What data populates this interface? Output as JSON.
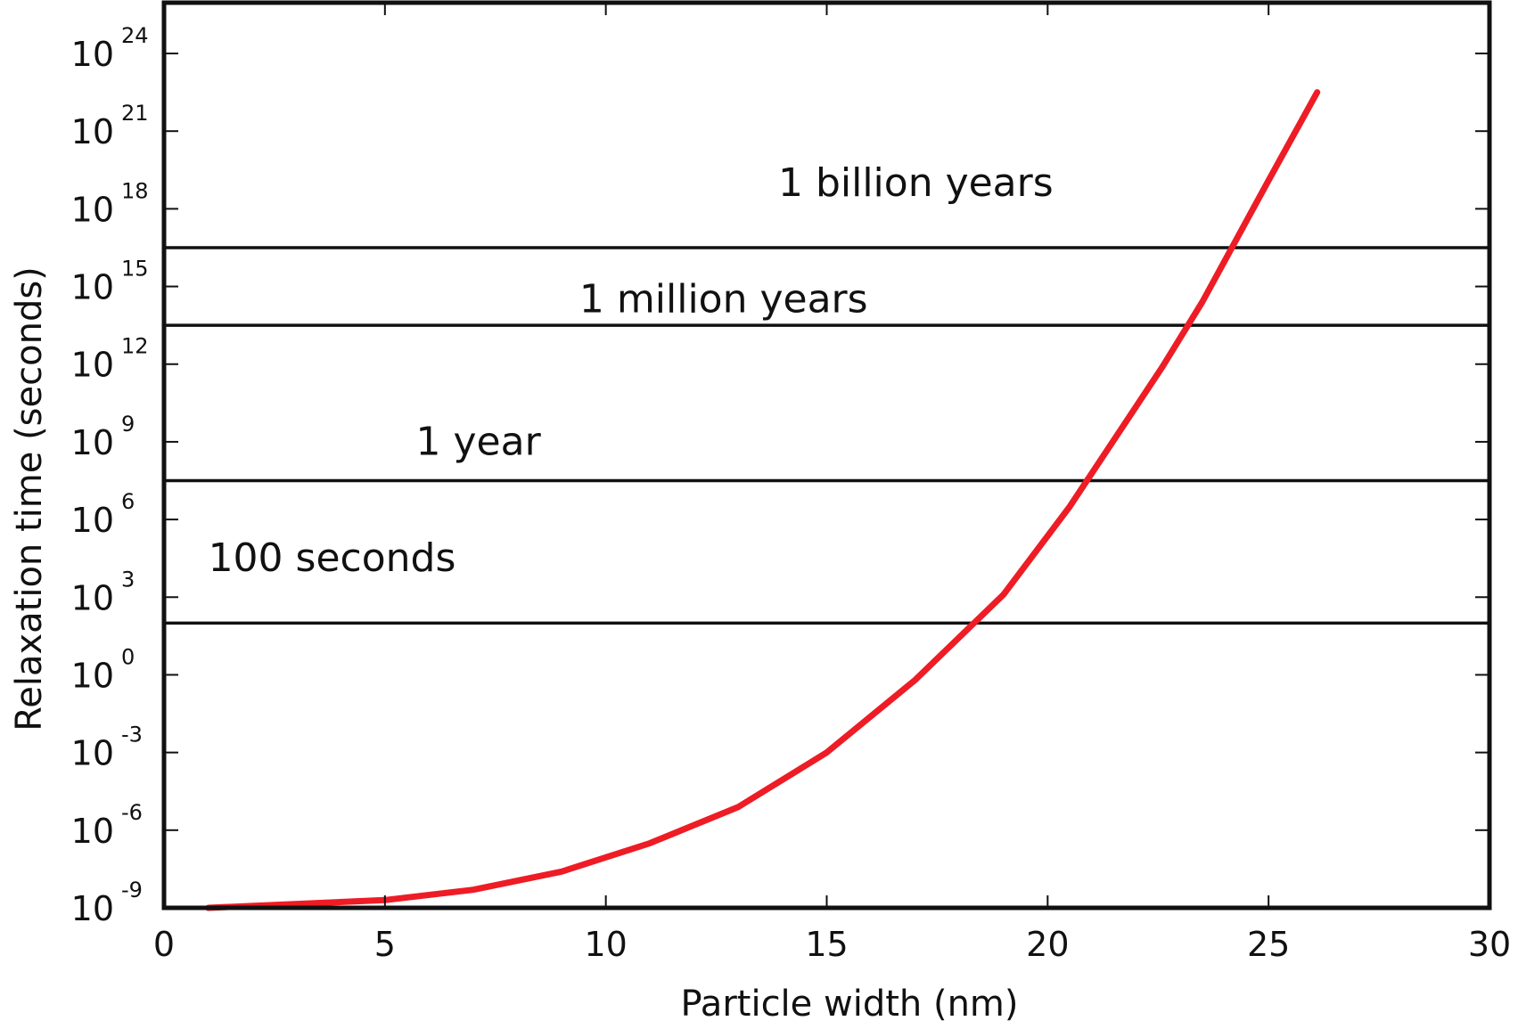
{
  "chart_data": {
    "type": "line",
    "title": "",
    "xlabel": "Particle width (nm)",
    "ylabel": "Relaxation time (seconds)",
    "xlim": [
      0,
      30
    ],
    "ylim_log10": [
      -9,
      26
    ],
    "yscale": "log",
    "grid": false,
    "legend": null,
    "x_ticks": [
      0,
      5,
      10,
      15,
      20,
      25,
      30
    ],
    "y_ticks": [
      {
        "base": "10",
        "exp": "-9"
      },
      {
        "base": "10",
        "exp": "-6"
      },
      {
        "base": "10",
        "exp": "-3"
      },
      {
        "base": "10",
        "exp": "0"
      },
      {
        "base": "10",
        "exp": "3"
      },
      {
        "base": "10",
        "exp": "6"
      },
      {
        "base": "10",
        "exp": "9"
      },
      {
        "base": "10",
        "exp": "12"
      },
      {
        "base": "10",
        "exp": "15"
      },
      {
        "base": "10",
        "exp": "18"
      },
      {
        "base": "10",
        "exp": "21"
      },
      {
        "base": "10",
        "exp": "24"
      }
    ],
    "series": [
      {
        "name": "Relaxation time",
        "color": "#ee1c25",
        "x": [
          1.0,
          5.0,
          7.0,
          9.0,
          11.0,
          13.0,
          15.0,
          17.0,
          19.0,
          20.5,
          22.6,
          23.5,
          25.0,
          26.1
        ],
        "log10_y": [
          -9.0,
          -8.7,
          -8.3,
          -7.6,
          -6.5,
          -5.1,
          -3.0,
          -0.2,
          3.1,
          6.5,
          11.9,
          14.4,
          19.1,
          22.5
        ]
      }
    ],
    "reference_lines": [
      {
        "label": "100 seconds",
        "log10_y": 2.0
      },
      {
        "label": "1 year",
        "log10_y": 7.5
      },
      {
        "label": "1 million years",
        "log10_y": 13.5
      },
      {
        "label": "1 billion years",
        "log10_y": 16.5
      }
    ],
    "annotations": [
      {
        "text": "1 billion years",
        "x": 13.9,
        "log10_y": 18.5
      },
      {
        "text": "1 million years",
        "x": 9.4,
        "log10_y": 14.0
      },
      {
        "text": "1 year",
        "x": 5.7,
        "log10_y": 8.5
      },
      {
        "text": "100 seconds",
        "x": 1.0,
        "log10_y": 4.0
      }
    ]
  },
  "colors": {
    "curve": "#ee1c25",
    "axes": "#111111",
    "background": "#ffffff"
  }
}
